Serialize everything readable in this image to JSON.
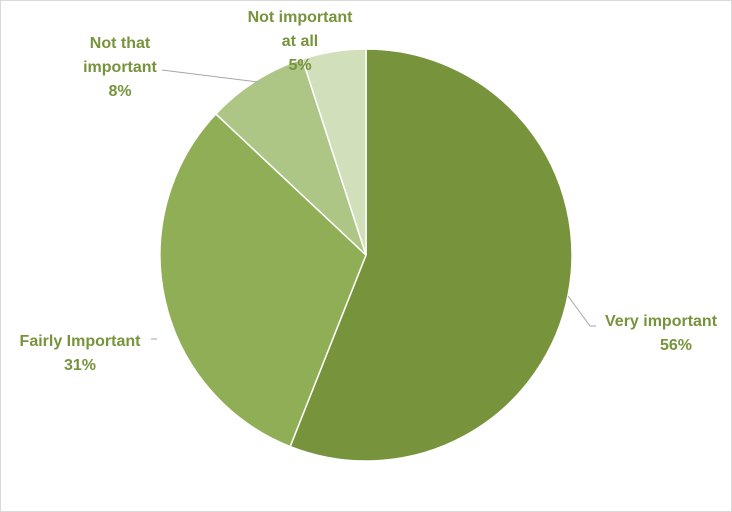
{
  "chart_data": {
    "type": "pie",
    "title": "",
    "slices": [
      {
        "label": "Very important",
        "value": 56,
        "percent_label": "56%",
        "color": "#77933c"
      },
      {
        "label": "Fairly Important",
        "value": 31,
        "percent_label": "31%",
        "color": "#8fae55"
      },
      {
        "label": "Not that important",
        "value": 8,
        "percent_label": "8%",
        "color": "#adc685"
      },
      {
        "label": "Not important at all",
        "value": 5,
        "percent_label": "5%",
        "color": "#d1dfbb"
      }
    ],
    "start_angle": "12 o'clock",
    "direction": "clockwise",
    "label_color": "#77933c",
    "leader_line_color": "#a6a6a6"
  }
}
